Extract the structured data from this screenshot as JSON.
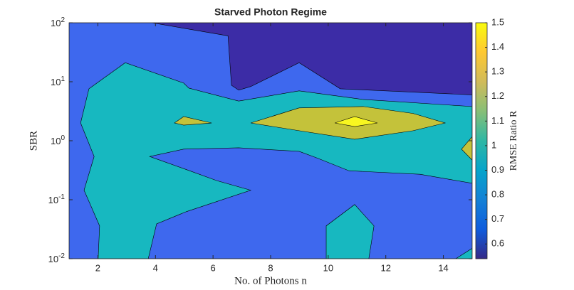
{
  "chart_data": {
    "type": "contourf",
    "title": "Starved Photon Regime",
    "xlabel": "No. of Photons n",
    "ylabel": "SBR",
    "colorbar_label": "RMSE Ratio R",
    "xlim": [
      1,
      15
    ],
    "xticks": [
      2,
      4,
      6,
      8,
      10,
      12,
      14
    ],
    "ylim": [
      0.01,
      100
    ],
    "yscale": "log",
    "yticks": [
      {
        "value": 0.01,
        "label": "10^-2"
      },
      {
        "value": 0.1,
        "label": "10^-1"
      },
      {
        "value": 1,
        "label": "10^0"
      },
      {
        "value": 10,
        "label": "10^1"
      },
      {
        "value": 100,
        "label": "10^2"
      }
    ],
    "clim": [
      0.54,
      1.5
    ],
    "cticks": [
      0.6,
      0.7,
      0.8,
      0.9,
      1,
      1.1,
      1.2,
      1.3,
      1.4,
      1.5
    ],
    "colormap": [
      "#352a87",
      "#0f5cdd",
      "#1481d6",
      "#06a4ca",
      "#2eb7a4",
      "#87bf77",
      "#d1bb59",
      "#fec832",
      "#f9fb0e"
    ],
    "regions": [
      {
        "level": 0.8,
        "color": "#3e68ee",
        "points": [
          [
            1,
            0.01
          ],
          [
            15,
            0.01
          ],
          [
            15,
            100
          ],
          [
            1,
            100
          ]
        ]
      },
      {
        "level": 0.6,
        "color": "#3c2ca6",
        "points": [
          [
            3.87,
            100
          ],
          [
            6.52,
            60
          ],
          [
            6.64,
            8.7
          ],
          [
            6.89,
            7.2
          ],
          [
            7.31,
            8.3
          ],
          [
            8.99,
            21
          ],
          [
            10.42,
            7.6
          ],
          [
            15,
            6.0
          ],
          [
            15,
            100
          ]
        ]
      },
      {
        "level": 1.0,
        "color": "#17b8c0",
        "points": [
          [
            2.01,
            0.01
          ],
          [
            2.06,
            0.036
          ],
          [
            1.52,
            0.145
          ],
          [
            1.87,
            0.54
          ],
          [
            1.4,
            2.0
          ],
          [
            1.69,
            7.6
          ],
          [
            2.95,
            21
          ],
          [
            4.98,
            9.5
          ],
          [
            5.16,
            7.8
          ],
          [
            6.89,
            4.7
          ],
          [
            8.99,
            7.0
          ],
          [
            11.22,
            5.0
          ],
          [
            15,
            3.8
          ],
          [
            15,
            0.19
          ],
          [
            13.19,
            0.27
          ],
          [
            10.72,
            0.31
          ],
          [
            9.61,
            0.51
          ],
          [
            8.99,
            0.66
          ],
          [
            6.89,
            0.76
          ],
          [
            4.98,
            0.72
          ],
          [
            3.8,
            0.54
          ],
          [
            5.03,
            0.33
          ],
          [
            6.14,
            0.21
          ],
          [
            7.31,
            0.145
          ],
          [
            5.08,
            0.063
          ],
          [
            4.04,
            0.039
          ],
          [
            3.75,
            0.01
          ]
        ]
      },
      {
        "level": 1.0,
        "color": "#17b8c0",
        "points": [
          [
            9.93,
            0.01
          ],
          [
            9.93,
            0.036
          ],
          [
            10.92,
            0.083
          ],
          [
            11.59,
            0.036
          ],
          [
            11.41,
            0.01
          ]
        ]
      },
      {
        "level": 1.0,
        "color": "#17b8c0",
        "points": [
          [
            14.43,
            0.01
          ],
          [
            15,
            0.015
          ],
          [
            15,
            0.01
          ]
        ]
      },
      {
        "level": 1.2,
        "color": "#c4c23a",
        "points": [
          [
            4.66,
            2.0
          ],
          [
            4.98,
            2.57
          ],
          [
            5.95,
            2.0
          ],
          [
            4.98,
            1.84
          ]
        ]
      },
      {
        "level": 1.2,
        "color": "#c4c23a",
        "points": [
          [
            7.31,
            2.0
          ],
          [
            8.99,
            3.6
          ],
          [
            11.22,
            3.8
          ],
          [
            12.95,
            2.9
          ],
          [
            14.06,
            2.0
          ],
          [
            12.95,
            1.48
          ],
          [
            10.92,
            1.06
          ],
          [
            8.99,
            1.48
          ]
        ]
      },
      {
        "level": 1.2,
        "color": "#c4c23a",
        "points": [
          [
            15,
            1.17
          ],
          [
            14.63,
            0.72
          ],
          [
            15,
            0.47
          ]
        ]
      },
      {
        "level": 1.4,
        "color": "#f8f620",
        "points": [
          [
            10.23,
            2.0
          ],
          [
            10.92,
            2.57
          ],
          [
            11.71,
            2.0
          ],
          [
            10.92,
            1.74
          ]
        ]
      }
    ]
  }
}
